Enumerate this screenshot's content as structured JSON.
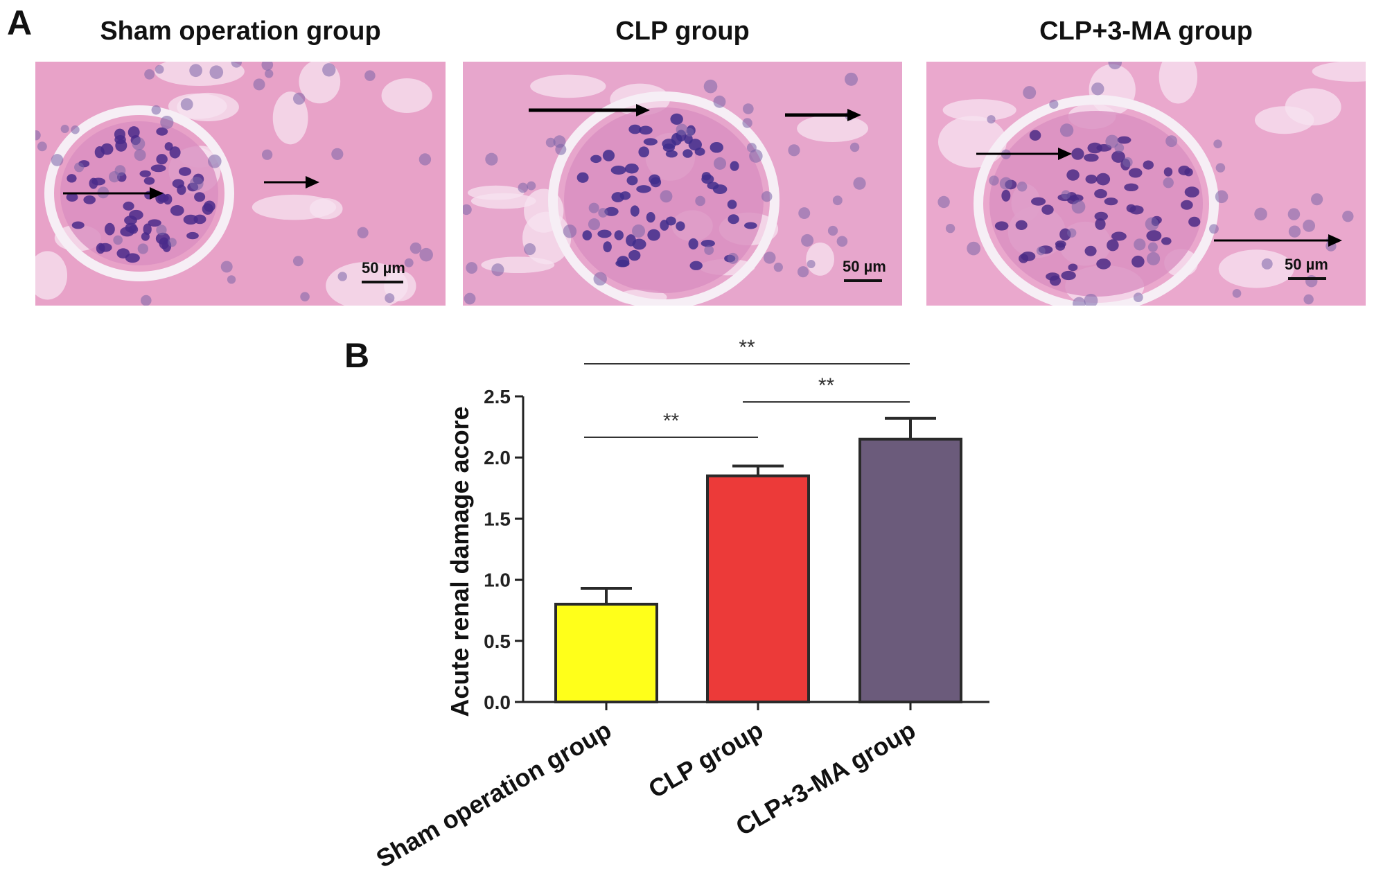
{
  "figure": {
    "panel_a_label": "A",
    "panel_b_label": "B",
    "images": [
      {
        "title": "Sham operation group",
        "scale_label": "50 µm",
        "tissue_color": "#e8a2c8",
        "nuclei_color": "#4a2a8a"
      },
      {
        "title": "CLP group",
        "scale_label": "50 µm",
        "tissue_color": "#e7a6cc",
        "nuclei_color": "#3f2d8c"
      },
      {
        "title": "CLP+3-MA group",
        "scale_label": "50 µm",
        "tissue_color": "#eaa8cd",
        "nuclei_color": "#4b2c86"
      }
    ]
  },
  "chart_data": {
    "type": "bar",
    "categories": [
      "Sham operation group",
      "CLP group",
      "CLP+3-MA group"
    ],
    "values": [
      0.8,
      1.85,
      2.15
    ],
    "errors": [
      0.13,
      0.08,
      0.17
    ],
    "colors": [
      "#ffff1a",
      "#ec3a39",
      "#6b5b7b"
    ],
    "title": "",
    "xlabel": "",
    "ylabel": "Acute renal damage acore",
    "ylim": [
      0,
      2.5
    ],
    "yticks": [
      "0.0",
      "0.5",
      "1.0",
      "1.5",
      "2.0",
      "2.5"
    ],
    "significance": [
      {
        "from": 0,
        "to": 2,
        "label": "**"
      },
      {
        "from": 1,
        "to": 2,
        "label": "**"
      },
      {
        "from": 0,
        "to": 1,
        "label": "**"
      }
    ],
    "grid": false
  }
}
